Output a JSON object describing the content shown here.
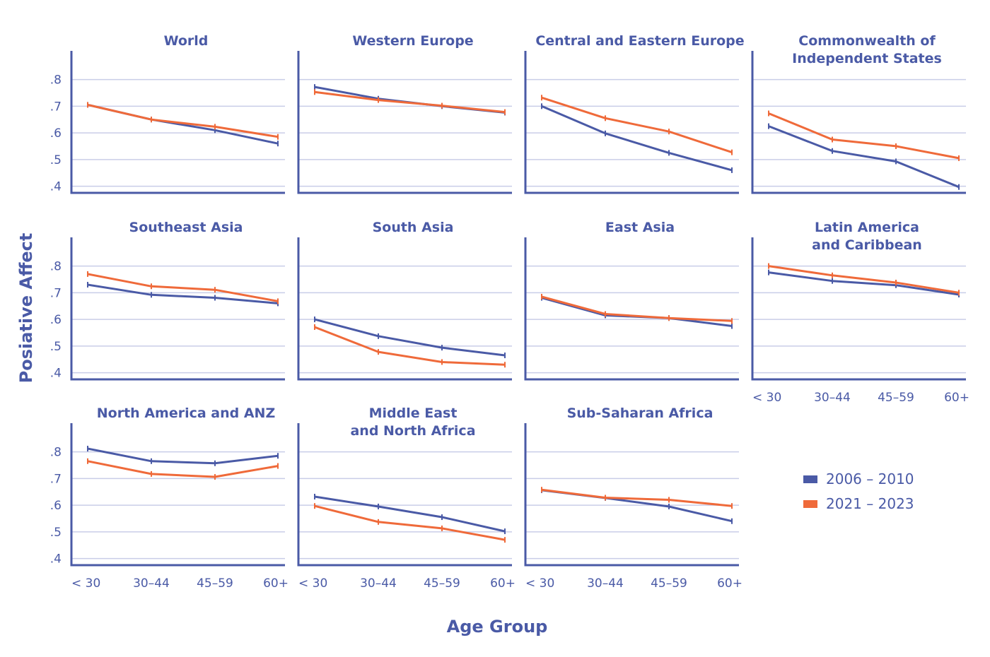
{
  "chart_data": {
    "type": "line",
    "layout": "small-multiples",
    "xlabel": "Age Group",
    "ylabel": "Posiative Affect",
    "categories": [
      "< 30",
      "30–44",
      "45–59",
      "60+"
    ],
    "yticks": [
      ".8",
      ".7",
      ".6",
      ".5",
      ".4"
    ],
    "ytick_values": [
      0.8,
      0.7,
      0.6,
      0.5,
      0.4
    ],
    "ylim": [
      0.375,
      0.9
    ],
    "grid": true,
    "legend_position": "bottom-right",
    "legend": [
      {
        "name": "2006 – 2010",
        "color": "#4a5aa6"
      },
      {
        "name": "2021 – 2023",
        "color": "#ef6a3a"
      }
    ],
    "panels": [
      {
        "title": [
          "World"
        ],
        "show_yticks": true,
        "show_xticks": false,
        "series": [
          {
            "name": "2006 – 2010",
            "values": [
              0.705,
              0.65,
              0.61,
              0.56
            ]
          },
          {
            "name": "2021 – 2023",
            "values": [
              0.705,
              0.65,
              0.623,
              0.585
            ]
          }
        ]
      },
      {
        "title": [
          "Western Europe"
        ],
        "show_yticks": false,
        "show_xticks": false,
        "series": [
          {
            "name": "2006 – 2010",
            "values": [
              0.772,
              0.728,
              0.7,
              0.676
            ]
          },
          {
            "name": "2021 – 2023",
            "values": [
              0.753,
              0.723,
              0.702,
              0.678
            ]
          }
        ]
      },
      {
        "title": [
          "Central and Eastern Europe"
        ],
        "show_yticks": false,
        "show_xticks": false,
        "series": [
          {
            "name": "2006 – 2010",
            "values": [
              0.7,
              0.598,
              0.525,
              0.46
            ]
          },
          {
            "name": "2021 – 2023",
            "values": [
              0.732,
              0.655,
              0.605,
              0.527
            ]
          }
        ]
      },
      {
        "title": [
          "Commonwealth of",
          "Independent States"
        ],
        "show_yticks": false,
        "show_xticks": false,
        "series": [
          {
            "name": "2006 – 2010",
            "values": [
              0.625,
              0.532,
              0.493,
              0.397
            ]
          },
          {
            "name": "2021 – 2023",
            "values": [
              0.673,
              0.575,
              0.55,
              0.505
            ]
          }
        ]
      },
      {
        "title": [
          "Southeast Asia"
        ],
        "show_yticks": true,
        "show_xticks": false,
        "series": [
          {
            "name": "2006 – 2010",
            "values": [
              0.73,
              0.692,
              0.681,
              0.66
            ]
          },
          {
            "name": "2021 – 2023",
            "values": [
              0.77,
              0.724,
              0.711,
              0.668
            ]
          }
        ]
      },
      {
        "title": [
          "South Asia"
        ],
        "show_yticks": false,
        "show_xticks": false,
        "series": [
          {
            "name": "2006 – 2010",
            "values": [
              0.6,
              0.537,
              0.494,
              0.465
            ]
          },
          {
            "name": "2021 – 2023",
            "values": [
              0.571,
              0.478,
              0.44,
              0.43
            ]
          }
        ]
      },
      {
        "title": [
          "East Asia"
        ],
        "show_yticks": false,
        "show_xticks": false,
        "series": [
          {
            "name": "2006 – 2010",
            "values": [
              0.681,
              0.615,
              0.605,
              0.575
            ]
          },
          {
            "name": "2021 – 2023",
            "values": [
              0.685,
              0.62,
              0.605,
              0.594
            ]
          }
        ]
      },
      {
        "title": [
          "Latin America",
          "and Caribbean"
        ],
        "show_yticks": false,
        "show_xticks": true,
        "series": [
          {
            "name": "2006 – 2010",
            "values": [
              0.776,
              0.744,
              0.728,
              0.693
            ]
          },
          {
            "name": "2021 – 2023",
            "values": [
              0.8,
              0.765,
              0.738,
              0.7
            ]
          }
        ]
      },
      {
        "title": [
          "North America and ANZ"
        ],
        "show_yticks": true,
        "show_xticks": true,
        "series": [
          {
            "name": "2006 – 2010",
            "values": [
              0.812,
              0.765,
              0.757,
              0.785
            ]
          },
          {
            "name": "2021 – 2023",
            "values": [
              0.765,
              0.717,
              0.706,
              0.747
            ]
          }
        ]
      },
      {
        "title": [
          "Middle East",
          "and North Africa"
        ],
        "show_yticks": false,
        "show_xticks": true,
        "series": [
          {
            "name": "2006 – 2010",
            "values": [
              0.632,
              0.595,
              0.555,
              0.502
            ]
          },
          {
            "name": "2021 – 2023",
            "values": [
              0.597,
              0.537,
              0.513,
              0.47
            ]
          }
        ]
      },
      {
        "title": [
          "Sub-Saharan Africa"
        ],
        "show_yticks": false,
        "show_xticks": true,
        "series": [
          {
            "name": "2006 – 2010",
            "values": [
              0.656,
              0.627,
              0.595,
              0.54
            ]
          },
          {
            "name": "2021 – 2023",
            "values": [
              0.658,
              0.628,
              0.62,
              0.597
            ]
          }
        ]
      }
    ]
  }
}
